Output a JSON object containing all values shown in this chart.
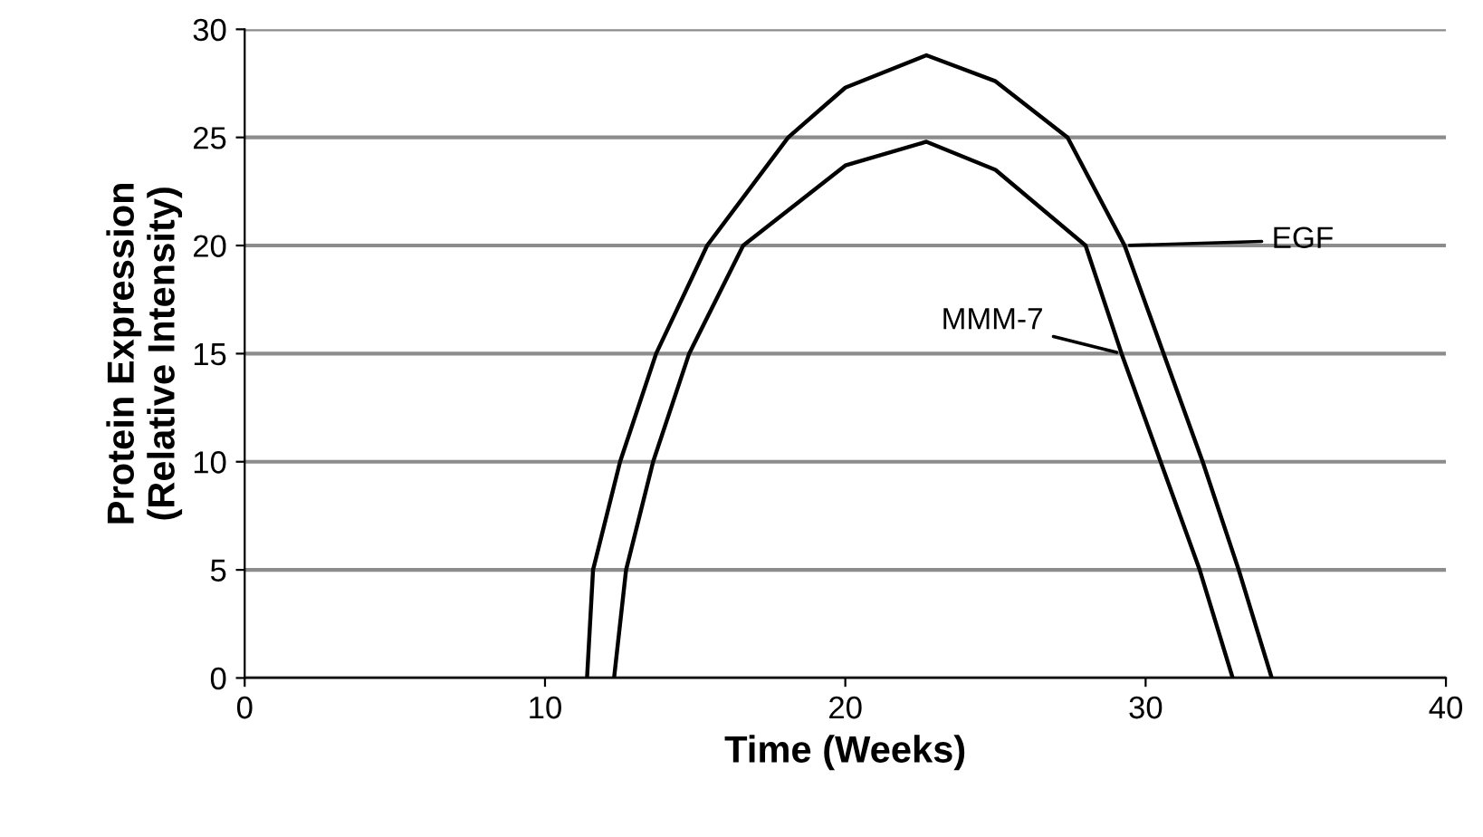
{
  "chart_data": {
    "type": "line",
    "xlabel": "Time (Weeks)",
    "ylabel": "Protein Expression\n(Relative Intensity)",
    "xlim": [
      0,
      40
    ],
    "xticks": [
      0,
      10,
      20,
      30,
      40
    ],
    "ylim": [
      0,
      30
    ],
    "yticks": [
      0,
      5,
      10,
      15,
      20,
      25,
      30
    ],
    "grid": "y",
    "marker": "none",
    "line_style": "solid",
    "series": [
      {
        "name": "EGF",
        "color": "#000000",
        "x": [
          11.4,
          11.6,
          12.5,
          13.7,
          15.4,
          18.1,
          20,
          22.7,
          25,
          27.4,
          29.3,
          30.6,
          31.9,
          33.1,
          34.2
        ],
        "values": [
          0,
          5,
          10,
          15,
          20,
          25,
          27.3,
          28.8,
          27.6,
          25,
          20,
          15,
          10,
          5,
          0
        ]
      },
      {
        "name": "MMM-7",
        "color": "#000000",
        "x": [
          12.3,
          12.7,
          13.6,
          14.8,
          16.6,
          20,
          22.7,
          25,
          28.0,
          29.2,
          30.5,
          31.8,
          32.9
        ],
        "values": [
          0,
          5,
          10,
          15,
          20,
          23.7,
          24.8,
          23.5,
          20,
          15,
          10,
          5,
          0
        ]
      }
    ]
  }
}
